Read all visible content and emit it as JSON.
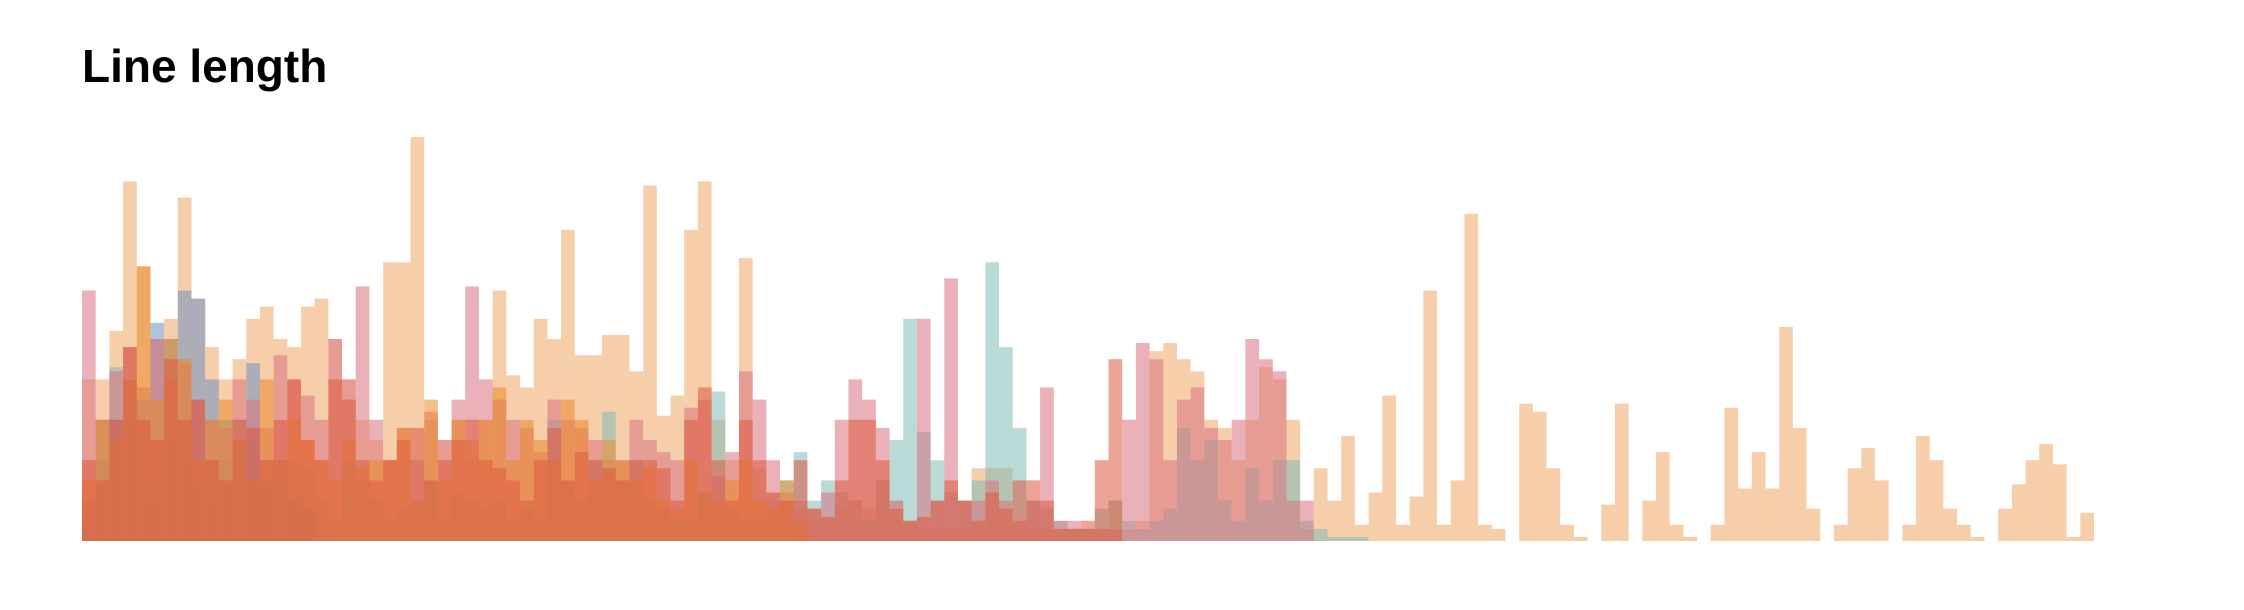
{
  "chart_data": {
    "type": "histogram",
    "title": "Line length",
    "ylim": [
      0,
      100
    ],
    "series": [
      {
        "color": "#eea864",
        "values": [
          40,
          40,
          52,
          89,
          68,
          50,
          55,
          85,
          60,
          48,
          40,
          45,
          55,
          58,
          50,
          48,
          58,
          60,
          50,
          40,
          30,
          25,
          69,
          69,
          100,
          30,
          25,
          30,
          20,
          30,
          62,
          41,
          38,
          55,
          50,
          77,
          46,
          46,
          51,
          51,
          42,
          88,
          31,
          36,
          77,
          89,
          30,
          20,
          70,
          18,
          12,
          10,
          8,
          5,
          5,
          8,
          10,
          8,
          15,
          10,
          5,
          3,
          3,
          3,
          3,
          18,
          18,
          18,
          5,
          3,
          3,
          3,
          3,
          3,
          3,
          10,
          3,
          5,
          47,
          49,
          45,
          42,
          30,
          28,
          20,
          30,
          43,
          40,
          30,
          3,
          18,
          10,
          26,
          4,
          12,
          36,
          4,
          11,
          62,
          4,
          15,
          81,
          4,
          3,
          0,
          34,
          32,
          18,
          4,
          1,
          0,
          9,
          34,
          0,
          10,
          22,
          4,
          1,
          0,
          4,
          33,
          13,
          22,
          13,
          53,
          28,
          8,
          0,
          4,
          18,
          23,
          15,
          0,
          4,
          26,
          20,
          8,
          4,
          1,
          0,
          8,
          14,
          20,
          24,
          19,
          1,
          7
        ]
      },
      {
        "color": "#7fbcb6",
        "values": [
          5,
          30,
          43,
          30,
          15,
          10,
          25,
          20,
          15,
          10,
          20,
          30,
          25,
          20,
          15,
          20,
          18,
          10,
          5,
          20,
          15,
          10,
          5,
          8,
          10,
          15,
          5,
          12,
          10,
          8,
          10,
          5,
          8,
          5,
          30,
          15,
          10,
          20,
          32,
          15,
          20,
          10,
          8,
          5,
          5,
          12,
          37,
          8,
          5,
          5,
          10,
          15,
          22,
          10,
          15,
          12,
          10,
          5,
          15,
          25,
          55,
          27,
          20,
          12,
          10,
          15,
          69,
          48,
          28,
          10,
          8,
          5,
          3,
          3,
          8,
          10,
          5,
          3,
          5,
          8,
          28,
          20,
          25,
          10,
          5,
          18,
          10,
          20,
          20,
          5,
          3,
          1,
          1,
          1
        ]
      },
      {
        "color": "#6f91c0",
        "values": [
          10,
          20,
          30,
          40,
          35,
          54,
          50,
          62,
          60,
          40,
          30,
          25,
          44,
          15,
          20,
          10,
          8
        ]
      },
      {
        "color": "#d9727e",
        "values": [
          62,
          30,
          42,
          48,
          38,
          50,
          40,
          44,
          35,
          30,
          28,
          40,
          35,
          28,
          46,
          40,
          36,
          30,
          50,
          40,
          63,
          30,
          20,
          28,
          20,
          32,
          25,
          35,
          63,
          40,
          35,
          30,
          28,
          22,
          35,
          30,
          28,
          25,
          20,
          20,
          30,
          25,
          22,
          20,
          33,
          35,
          16,
          22,
          42,
          35,
          20,
          12,
          10,
          8,
          12,
          30,
          40,
          35,
          28,
          10,
          5,
          55,
          10,
          65,
          10,
          10,
          15,
          10,
          5,
          10,
          38,
          5,
          5,
          3,
          3,
          3,
          30,
          49,
          45,
          20,
          35,
          38,
          28,
          25,
          30,
          50,
          45,
          42,
          10,
          10
        ]
      },
      {
        "color": "#ea8a2c",
        "values": [
          15,
          30,
          25,
          40,
          68,
          35,
          50,
          45,
          20,
          30,
          35,
          25,
          15,
          40,
          20,
          30,
          25,
          20,
          15,
          25,
          18,
          20,
          20,
          28,
          10,
          35,
          15,
          30,
          25,
          30,
          38,
          20,
          30,
          25,
          20,
          35,
          30,
          15,
          25,
          20,
          15,
          18,
          10,
          8,
          20,
          12,
          10,
          15,
          20,
          10,
          8,
          15,
          5
        ]
      },
      {
        "color": "#dc5a40",
        "values": [
          20,
          15,
          30,
          48,
          30,
          25,
          45,
          30,
          35,
          20,
          15,
          30,
          28,
          20,
          30,
          40,
          25,
          20,
          40,
          35,
          20,
          15,
          20,
          25,
          28,
          15,
          20,
          25,
          30,
          20,
          18,
          15,
          10,
          20,
          28,
          15,
          22,
          20,
          18,
          15,
          20,
          20,
          18,
          10,
          30,
          38,
          20,
          10,
          30,
          20,
          12,
          10,
          20,
          8,
          6,
          15,
          30,
          30,
          20,
          8,
          5,
          6,
          10,
          15,
          10,
          5,
          12,
          8,
          15,
          15,
          10,
          3,
          3,
          5,
          20,
          45
        ]
      }
    ]
  }
}
